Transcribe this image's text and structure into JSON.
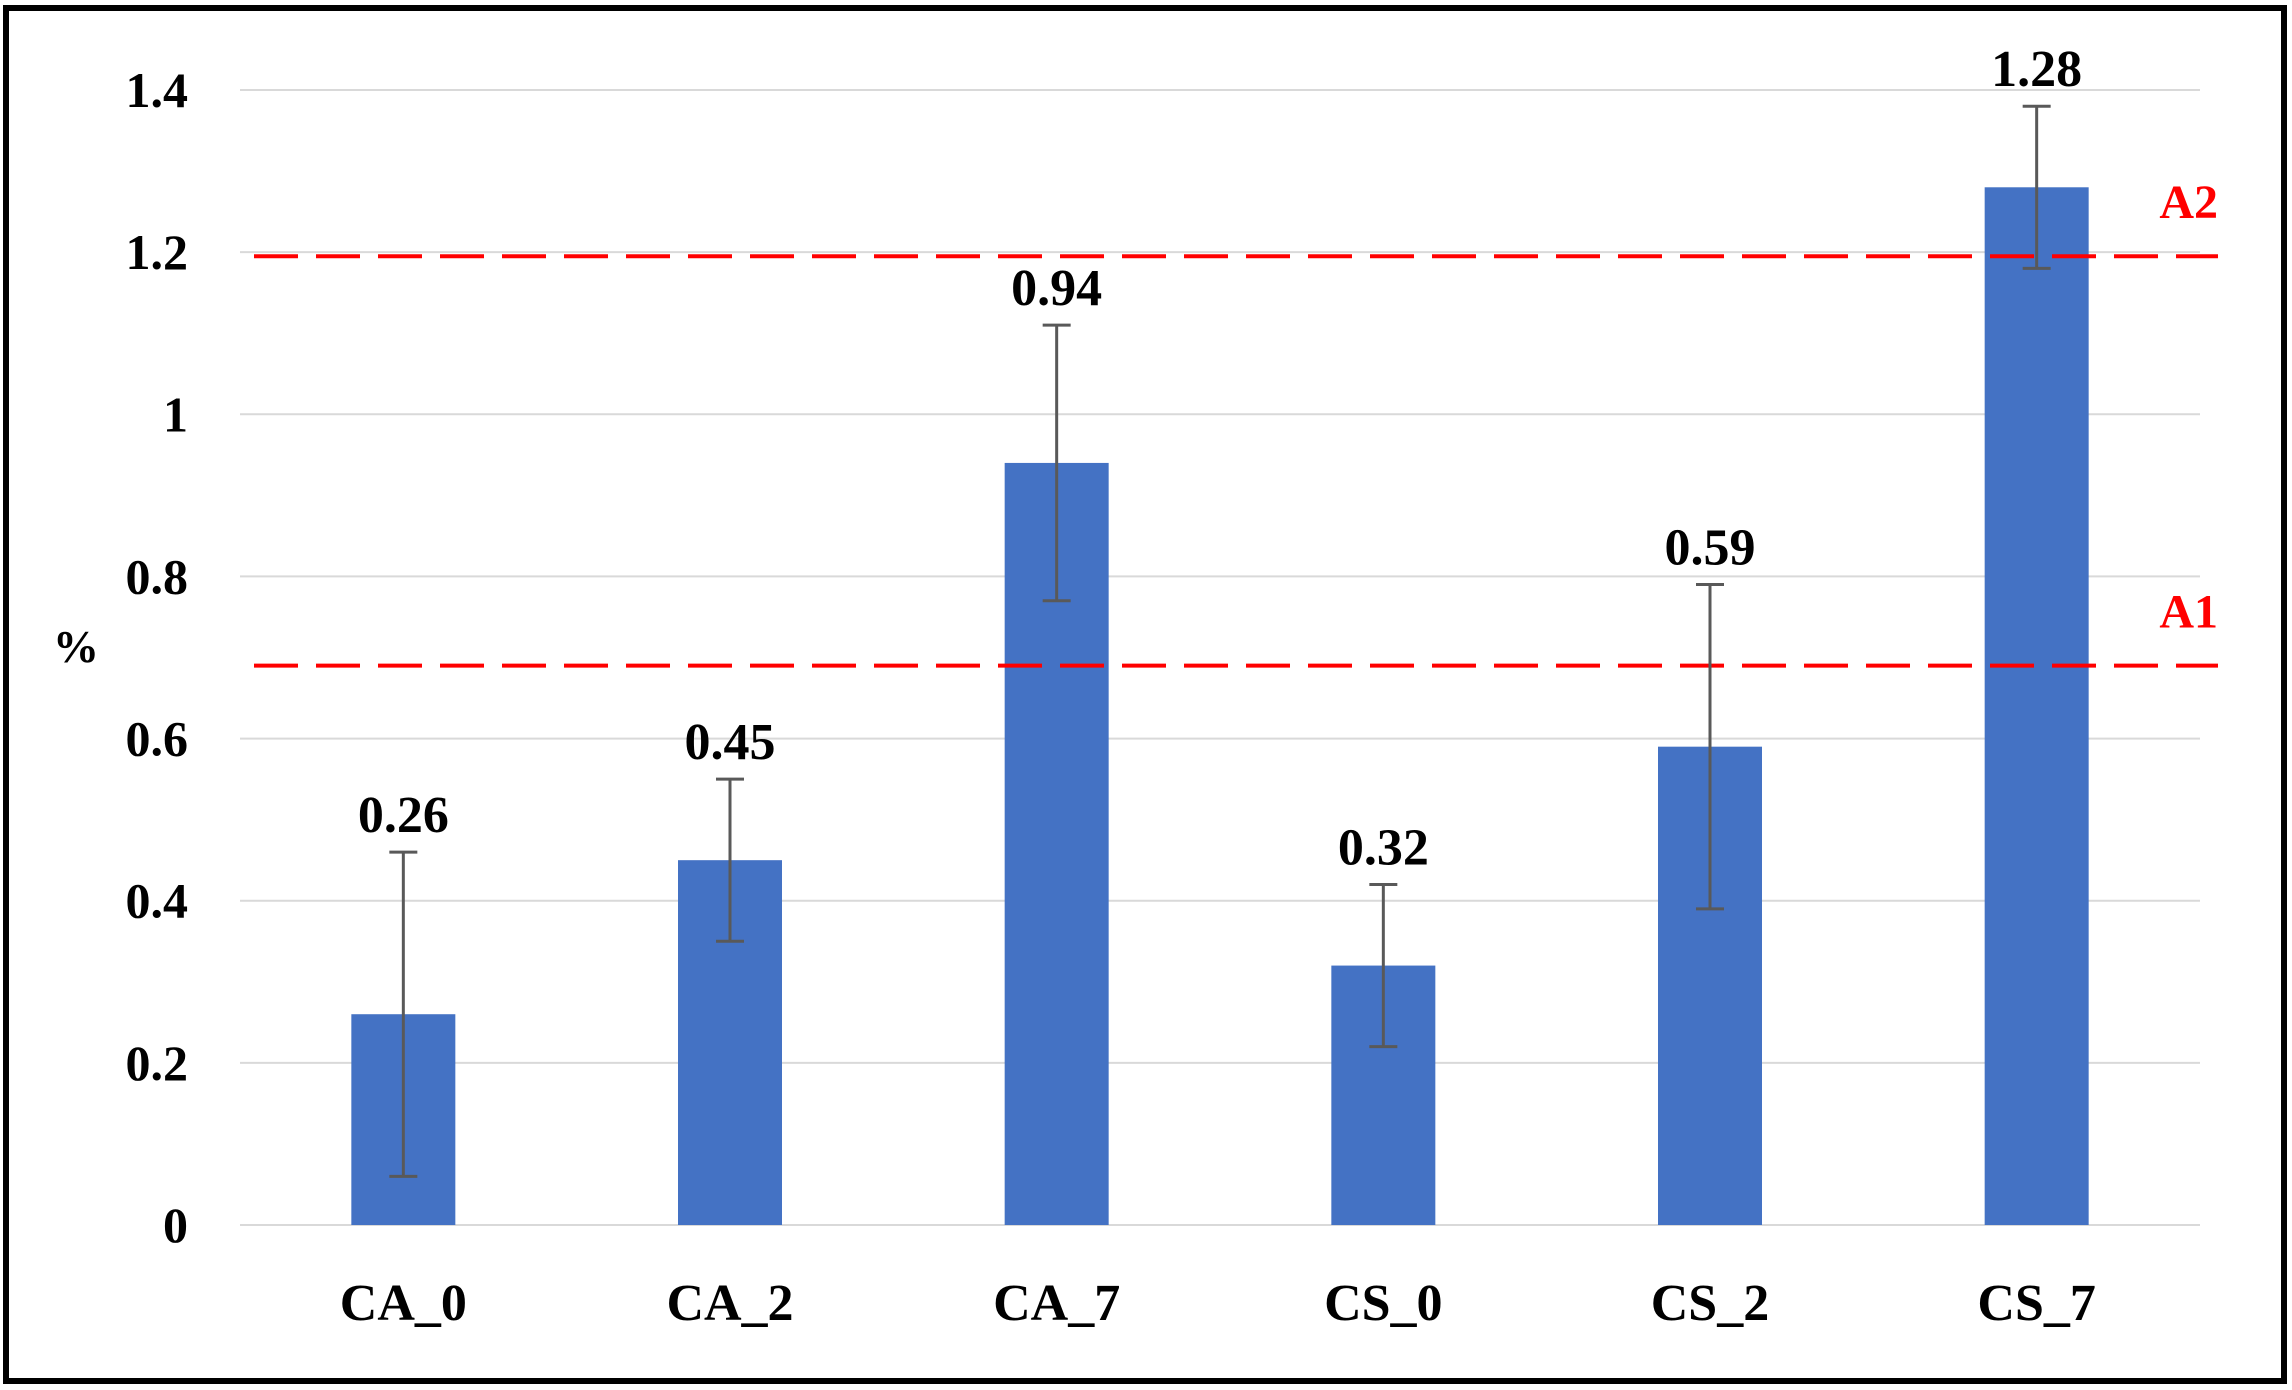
{
  "chart_data": {
    "type": "bar",
    "title": "",
    "xlabel": "",
    "ylabel": "%",
    "ylim": [
      0,
      1.4
    ],
    "yticks": [
      {
        "value": 0,
        "label": "0"
      },
      {
        "value": 0.2,
        "label": "0.2"
      },
      {
        "value": 0.4,
        "label": "0.4"
      },
      {
        "value": 0.6,
        "label": "0.6"
      },
      {
        "value": 0.8,
        "label": "0.8"
      },
      {
        "value": 1,
        "label": "1"
      },
      {
        "value": 1.2,
        "label": "1.2"
      },
      {
        "value": 1.4,
        "label": "1.4"
      }
    ],
    "grid": true,
    "categories": [
      "CA_0",
      "CA_2",
      "CA_7",
      "CS_0",
      "CS_2",
      "CS_7"
    ],
    "values": [
      0.26,
      0.45,
      0.94,
      0.32,
      0.59,
      1.28
    ],
    "value_labels": [
      "0.26",
      "0.45",
      "0.94",
      "0.32",
      "0.59",
      "1.28"
    ],
    "error_bars": [
      0.2,
      0.1,
      0.17,
      0.1,
      0.2,
      0.1
    ],
    "reference_lines": [
      {
        "label": "A1",
        "value": 0.69,
        "color": "#ff0000",
        "style": "dashed"
      },
      {
        "label": "A2",
        "value": 1.195,
        "color": "#ff0000",
        "style": "dashed"
      }
    ],
    "colors": {
      "bar": "#4472c4",
      "error_bar": "#595959",
      "grid": "#d9d9d9",
      "frame": "#000000"
    }
  }
}
